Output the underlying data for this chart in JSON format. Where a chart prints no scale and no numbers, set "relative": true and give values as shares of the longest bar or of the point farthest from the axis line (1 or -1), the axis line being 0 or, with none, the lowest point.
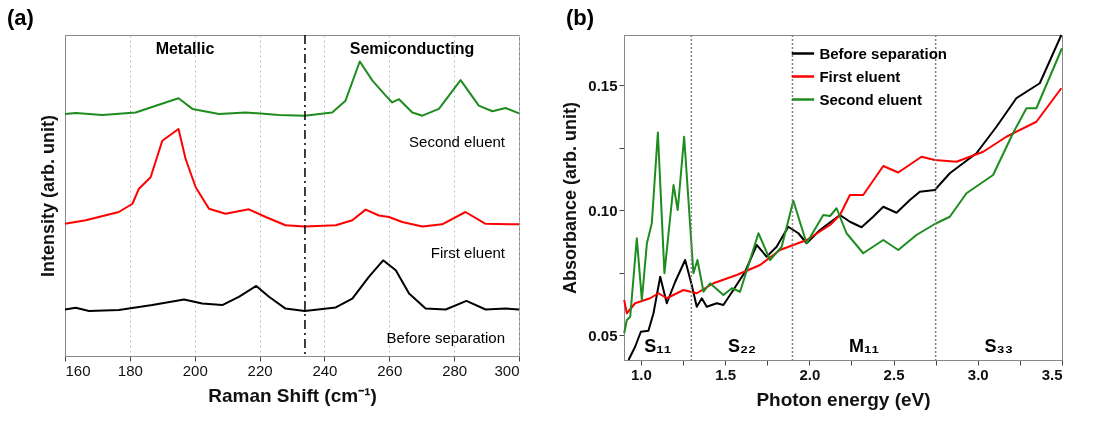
{
  "chart_data": [
    {
      "type": "line",
      "title": "(a)",
      "xlabel": "Raman Shift (cm⁻¹)",
      "ylabel": "Intensity (arb. unit)",
      "relative": true,
      "xlim": [
        160,
        300
      ],
      "xticks": [
        160,
        180,
        200,
        220,
        240,
        260,
        280,
        300
      ],
      "grid": "x",
      "legend": false,
      "tick_labels": "x",
      "annotations": [
        "Metallic",
        "Semiconducting"
      ],
      "ref_lines": [
        {
          "axis": "x",
          "value": 234,
          "color": "#000000",
          "line_style": "dashed"
        }
      ],
      "series": [
        {
          "name": "Second eluent",
          "color": "#1e8c1e",
          "x": [
            160,
            163.3,
            171.5,
            181.8,
            188,
            195,
            199.3,
            207.5,
            215.7,
            226,
            233.9,
            242.4,
            246.5,
            250.9,
            254.8,
            258.9,
            260.9,
            263,
            267.1,
            270.2,
            275.3,
            282,
            287.6,
            291.8,
            295.9,
            300
          ],
          "values": [
            0.822,
            0.825,
            0.818,
            0.827,
            0.85,
            0.875,
            0.839,
            0.822,
            0.827,
            0.818,
            0.816,
            0.827,
            0.867,
            1.0,
            0.935,
            0.884,
            0.861,
            0.872,
            0.827,
            0.816,
            0.839,
            0.937,
            0.85,
            0.831,
            0.842,
            0.824
          ]
        },
        {
          "name": "First eluent",
          "color": "#ff0000",
          "x": [
            160,
            166.4,
            176.6,
            180.8,
            182.8,
            186.4,
            190,
            195,
            197.2,
            200.3,
            204.4,
            209.5,
            216.7,
            221.9,
            228,
            233.9,
            243.5,
            248.6,
            252.7,
            256.8,
            259.9,
            264,
            270.2,
            276.3,
            283.5,
            289.7,
            300
          ],
          "values": [
            0.449,
            0.461,
            0.489,
            0.517,
            0.568,
            0.607,
            0.731,
            0.771,
            0.669,
            0.573,
            0.5,
            0.483,
            0.498,
            0.472,
            0.444,
            0.44,
            0.444,
            0.461,
            0.497,
            0.477,
            0.472,
            0.455,
            0.44,
            0.447,
            0.489,
            0.449,
            0.447
          ]
        },
        {
          "name": "Before separation",
          "color": "#000000",
          "x": [
            160,
            163.3,
            167.4,
            176.6,
            186.9,
            196.7,
            202.3,
            208.5,
            213.6,
            219,
            222.9,
            228,
            233.9,
            243.5,
            248.6,
            253.7,
            258.1,
            262,
            266.1,
            271.2,
            277.4,
            283.8,
            289.7,
            295.9,
            300
          ],
          "values": [
            0.158,
            0.164,
            0.153,
            0.156,
            0.173,
            0.192,
            0.178,
            0.173,
            0.201,
            0.238,
            0.201,
            0.161,
            0.153,
            0.165,
            0.195,
            0.269,
            0.325,
            0.291,
            0.212,
            0.161,
            0.158,
            0.187,
            0.158,
            0.161,
            0.158
          ]
        }
      ]
    },
    {
      "type": "line",
      "title": "(b)",
      "xlabel": "Photon energy (eV)",
      "ylabel": "Absorbance (arb. unit)",
      "xlim": [
        0.9,
        3.5
      ],
      "xticks": [
        {
          "value": 1,
          "label": "1.0"
        },
        {
          "value": 1.25,
          "label": null
        },
        1.5,
        {
          "value": 1.75,
          "label": null
        },
        {
          "value": 2,
          "label": "2.0"
        },
        {
          "value": 2.25,
          "label": null
        },
        2.5,
        {
          "value": 2.75,
          "label": null
        },
        {
          "value": 3,
          "label": "3.0"
        },
        {
          "value": 3.25,
          "label": null
        },
        3.5
      ],
      "ylim": [
        0.04,
        0.17
      ],
      "yticks": [
        0.05,
        {
          "value": 0.075,
          "label": null
        },
        {
          "value": 0.1,
          "label": "0.10"
        },
        {
          "value": 0.125,
          "label": null
        },
        0.15
      ],
      "legend": "top",
      "annotations": [
        "S₁₁",
        "S₂₂",
        "M₁₁",
        "S₃₃"
      ],
      "ref_lines": [
        {
          "axis": "x",
          "value": 1.3,
          "color": "#808080",
          "line_style": "dotted"
        },
        {
          "axis": "x",
          "value": 1.9,
          "color": "#808080",
          "line_style": "dotted"
        },
        {
          "axis": "x",
          "value": 2.75,
          "color": "#808080",
          "line_style": "dotted"
        }
      ],
      "series": [
        {
          "name": "Before separation",
          "color": "#000000",
          "x": [
            0.927,
            0.966,
            1.0,
            1.045,
            1.075,
            1.115,
            1.154,
            1.204,
            1.263,
            1.302,
            1.332,
            1.362,
            1.391,
            1.451,
            1.49,
            1.549,
            1.619,
            1.688,
            1.747,
            1.806,
            1.875,
            1.935,
            1.984,
            2.063,
            2.182,
            2.241,
            2.31,
            2.379,
            2.439,
            2.518,
            2.597,
            2.656,
            2.745,
            2.834,
            2.992,
            3.111,
            3.229,
            3.368,
            3.496
          ],
          "values": [
            0.04,
            0.0453,
            0.0513,
            0.0517,
            0.0587,
            0.0733,
            0.0627,
            0.0713,
            0.08,
            0.07,
            0.0613,
            0.0647,
            0.0613,
            0.0627,
            0.062,
            0.068,
            0.0753,
            0.086,
            0.0813,
            0.0853,
            0.0933,
            0.0907,
            0.0867,
            0.092,
            0.098,
            0.0953,
            0.0931,
            0.0973,
            0.1013,
            0.0989,
            0.104,
            0.1073,
            0.108,
            0.1147,
            0.1227,
            0.1333,
            0.1447,
            0.1507,
            0.17
          ]
        },
        {
          "name": "First eluent",
          "color": "#ff0000",
          "x": [
            0.901,
            0.917,
            0.966,
            1.055,
            1.105,
            1.154,
            1.253,
            1.332,
            1.431,
            1.569,
            1.708,
            1.826,
            1.984,
            2.123,
            2.182,
            2.241,
            2.32,
            2.439,
            2.528,
            2.666,
            2.745,
            2.874,
            3.032,
            3.17,
            3.348,
            3.496
          ],
          "values": [
            0.064,
            0.0587,
            0.0627,
            0.0647,
            0.0667,
            0.0647,
            0.068,
            0.0667,
            0.0707,
            0.074,
            0.078,
            0.084,
            0.088,
            0.094,
            0.098,
            0.106,
            0.106,
            0.1176,
            0.115,
            0.1213,
            0.12,
            0.1193,
            0.1233,
            0.1293,
            0.1353,
            0.1487
          ]
        },
        {
          "name": "Second eluent",
          "color": "#1e8c1e",
          "x": [
            0.901,
            0.917,
            0.937,
            0.976,
            1.006,
            1.036,
            1.065,
            1.101,
            1.14,
            1.194,
            1.219,
            1.257,
            1.312,
            1.336,
            1.372,
            1.411,
            1.49,
            1.54,
            1.589,
            1.698,
            1.767,
            1.836,
            1.905,
            1.984,
            2.083,
            2.123,
            2.162,
            2.221,
            2.32,
            2.439,
            2.528,
            2.636,
            2.745,
            2.834,
            2.933,
            3.091,
            3.209,
            3.289,
            3.348,
            3.5
          ],
          "values": [
            0.0507,
            0.056,
            0.0573,
            0.0887,
            0.064,
            0.0867,
            0.0947,
            0.131,
            0.0747,
            0.11,
            0.1,
            0.1293,
            0.0747,
            0.08,
            0.0673,
            0.0707,
            0.066,
            0.0687,
            0.0673,
            0.0907,
            0.08,
            0.0853,
            0.1037,
            0.0867,
            0.098,
            0.0976,
            0.1007,
            0.0907,
            0.0827,
            0.088,
            0.084,
            0.09,
            0.0944,
            0.0973,
            0.1067,
            0.114,
            0.1307,
            0.1407,
            0.1407,
            0.1647
          ]
        }
      ]
    }
  ]
}
